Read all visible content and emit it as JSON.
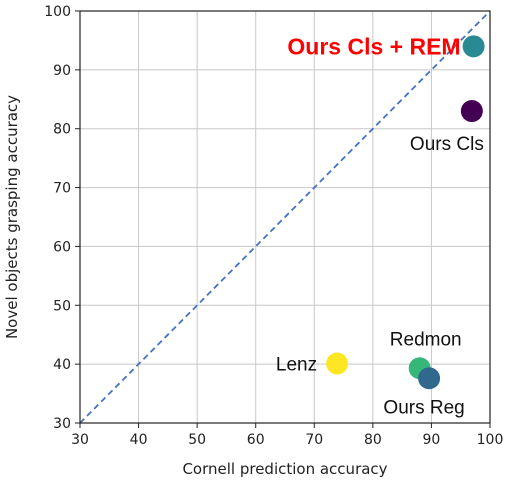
{
  "chart_data": {
    "type": "scatter",
    "xlabel": "Cornell prediction accuracy",
    "ylabel": "Novel objects grasping accuracy",
    "xlim": [
      30,
      100
    ],
    "ylim": [
      30,
      100
    ],
    "xticks": [
      30,
      40,
      50,
      60,
      70,
      80,
      90,
      100
    ],
    "yticks": [
      30,
      40,
      50,
      60,
      70,
      80,
      90,
      100
    ],
    "grid": true,
    "reference_line": {
      "from": [
        30,
        30
      ],
      "to": [
        100,
        100
      ],
      "style": "dashed",
      "color": "#4472c4"
    },
    "points": [
      {
        "label": "Ours Cls + REM",
        "x": 97.2,
        "y": 94.0,
        "color": "#2a8a93",
        "label_color": "#ff0000",
        "highlight": true
      },
      {
        "label": "Ours Cls",
        "x": 96.9,
        "y": 83.0,
        "color": "#440154",
        "label_color": "#111111",
        "highlight": false
      },
      {
        "label": "Lenz",
        "x": 73.9,
        "y": 40.1,
        "color": "#fde725",
        "label_color": "#111111",
        "highlight": false
      },
      {
        "label": "Redmon",
        "x": 88.0,
        "y": 39.3,
        "color": "#35b779",
        "label_color": "#111111",
        "highlight": false
      },
      {
        "label": "Ours Reg",
        "x": 89.6,
        "y": 37.6,
        "color": "#31688e",
        "label_color": "#111111",
        "highlight": false
      }
    ]
  }
}
